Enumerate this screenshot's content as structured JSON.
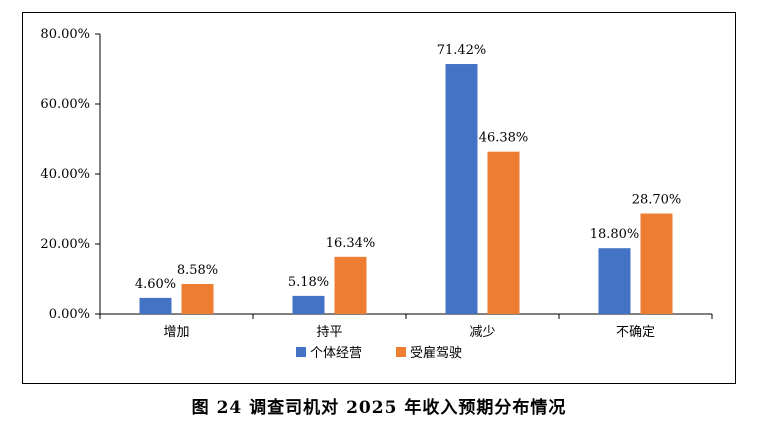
{
  "caption": "图 24  调查司机对 2025 年收入预期分布情况",
  "chart_data": {
    "type": "bar",
    "categories": [
      "增加",
      "持平",
      "减少",
      "不确定"
    ],
    "series": [
      {
        "name": "个体经营",
        "values": [
          4.6,
          5.18,
          71.42,
          18.8
        ],
        "labels": [
          "4.60%",
          "5.18%",
          "71.42%",
          "18.80%"
        ],
        "color": "#4472c4"
      },
      {
        "name": "受雇驾驶",
        "values": [
          8.58,
          16.34,
          46.38,
          28.7
        ],
        "labels": [
          "8.58%",
          "16.34%",
          "46.38%",
          "28.70%"
        ],
        "color": "#ed7d31"
      }
    ],
    "ylim": [
      0,
      80
    ],
    "yticks": [
      0,
      20,
      40,
      60,
      80
    ],
    "ytick_labels": [
      "0.00%",
      "20.00%",
      "40.00%",
      "60.00%",
      "80.00%"
    ],
    "grid": false,
    "legend_position": "bottom-center"
  }
}
